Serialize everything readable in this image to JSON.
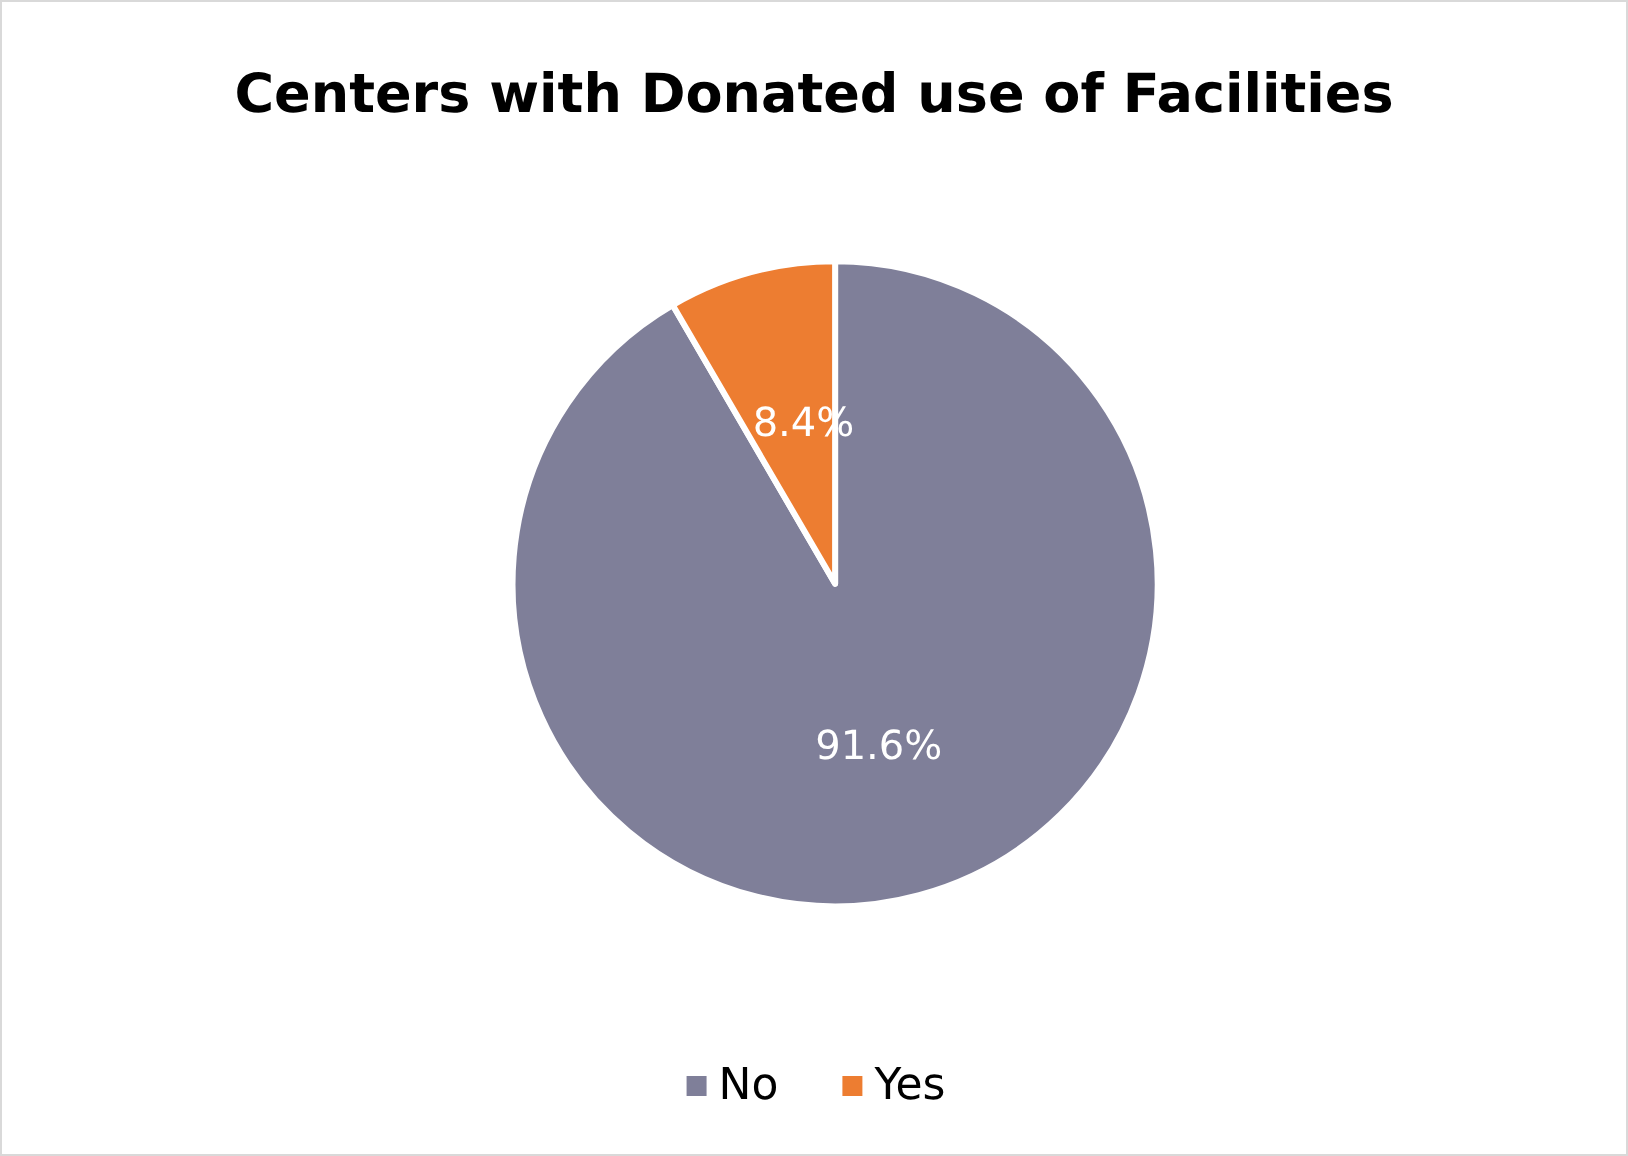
{
  "chart_data": {
    "type": "pie",
    "title": "Centers with Donated use of Facilities",
    "categories": [
      "No",
      "Yes"
    ],
    "values": [
      91.6,
      8.4
    ],
    "colors": [
      "#7f7f99",
      "#ed7d31"
    ],
    "value_labels": [
      "91.6%",
      "8.4%"
    ],
    "legend": "bottom"
  }
}
